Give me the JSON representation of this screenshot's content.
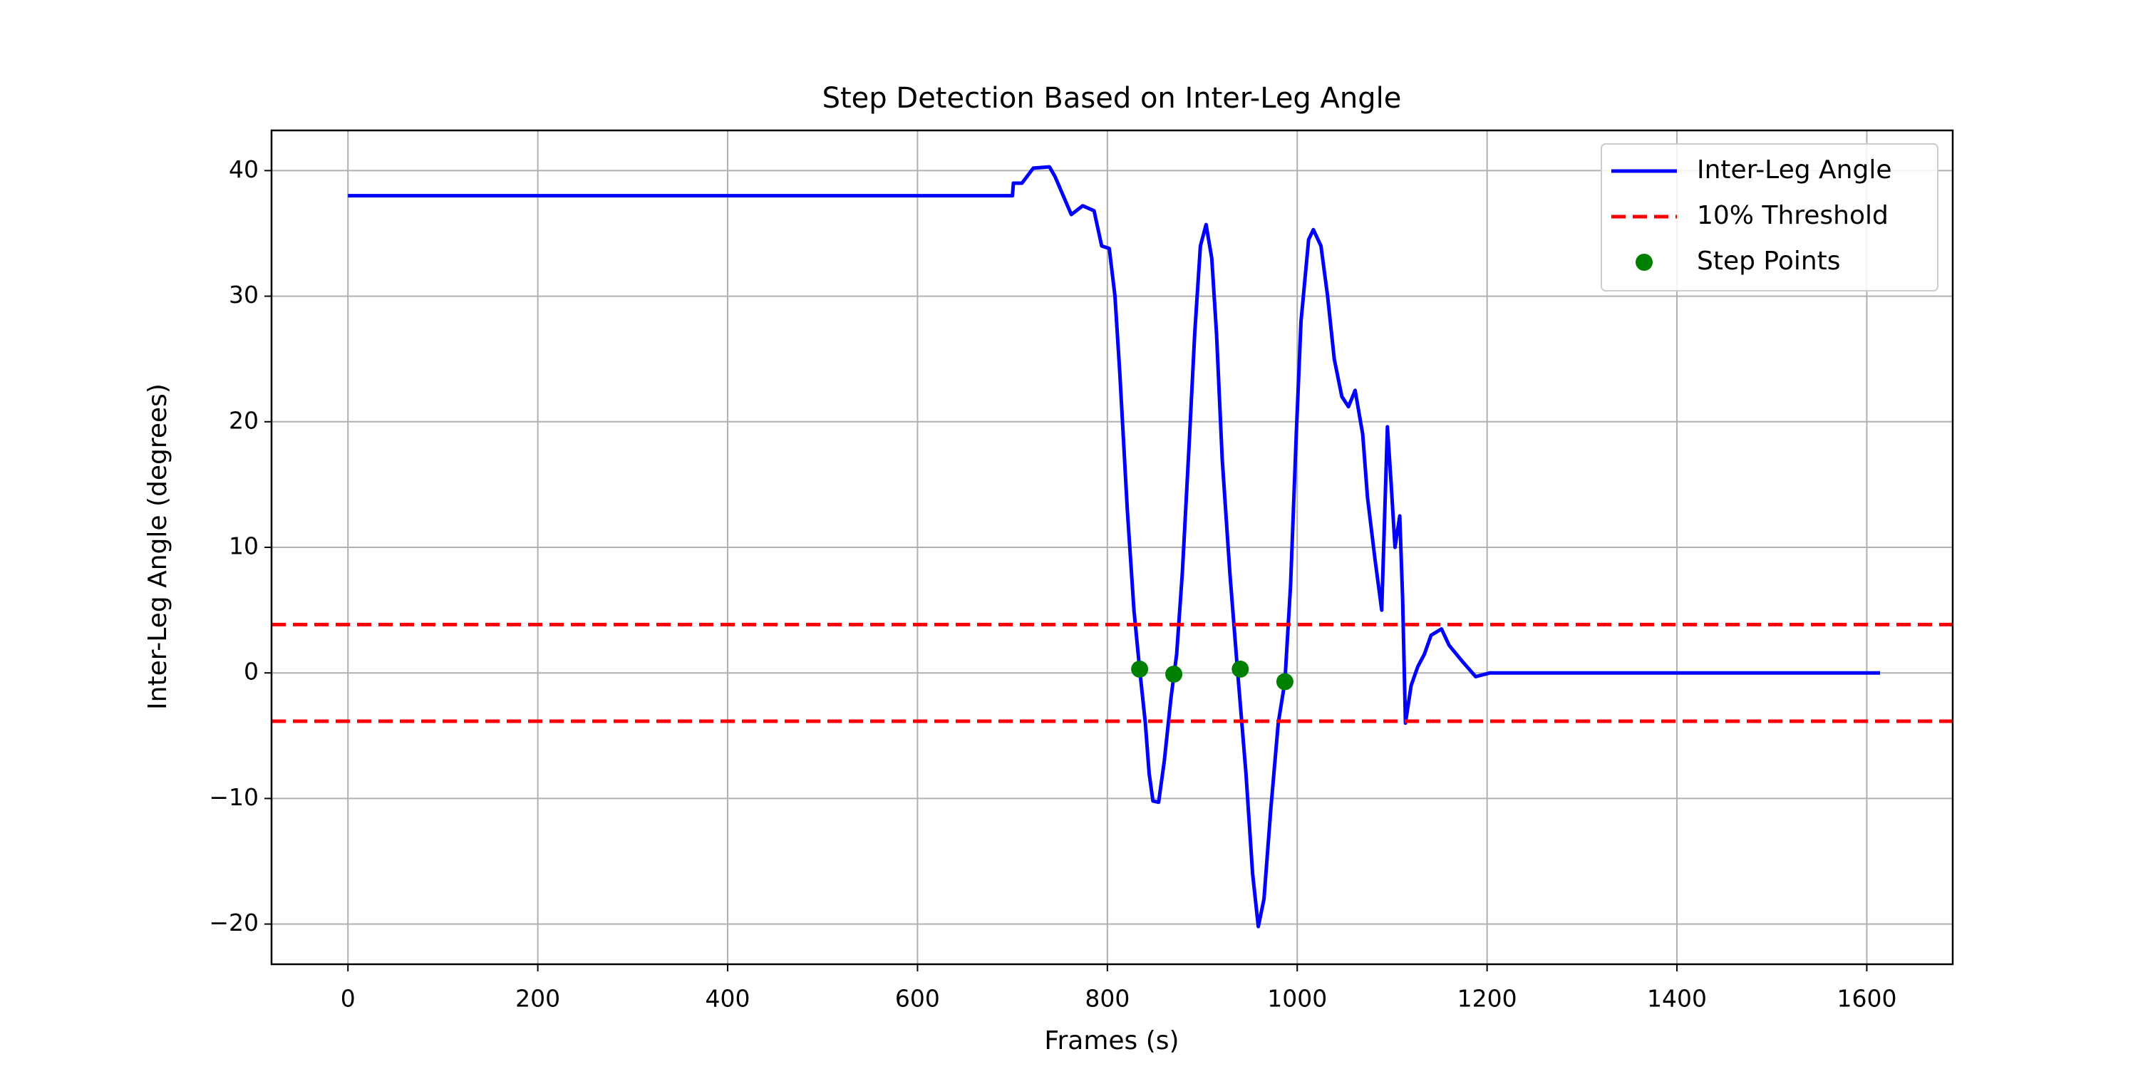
{
  "chart_data": {
    "type": "line",
    "title": "Step Detection Based on Inter-Leg Angle",
    "xlabel": "Frames (s)",
    "ylabel": "Inter-Leg Angle (degrees)",
    "xlim": [
      -80.5,
      1690.5
    ],
    "ylim": [
      -23.2,
      43.2
    ],
    "xticks": [
      0,
      200,
      400,
      600,
      800,
      1000,
      1200,
      1400,
      1600
    ],
    "yticks": [
      {
        "value": -20,
        "label": "−20"
      },
      {
        "value": -10,
        "label": "−10"
      },
      0,
      10,
      20,
      30,
      40
    ],
    "grid": true,
    "legend": "upper right",
    "series": [
      {
        "name": "Inter-Leg Angle",
        "color": "#0000ff",
        "x": [
          0,
          700,
          701,
          710,
          722,
          739,
          745,
          762,
          774,
          786,
          794,
          802,
          808,
          813,
          821,
          828,
          834,
          840,
          844,
          848,
          854,
          860,
          867,
          873,
          879,
          886,
          892,
          898,
          904,
          910,
          915,
          921,
          929,
          937,
          946,
          953,
          959,
          965,
          972,
          980,
          987,
          993,
          999,
          1004,
          1012,
          1017,
          1025,
          1032,
          1039,
          1047,
          1054,
          1061,
          1069,
          1074,
          1082,
          1089,
          1095,
          1099,
          1103,
          1108,
          1111,
          1114,
          1120,
          1127,
          1134,
          1141,
          1152,
          1160,
          1173,
          1188,
          1203,
          1614
        ],
        "values": [
          38,
          38,
          39,
          39,
          40.2,
          40.3,
          39.5,
          36.5,
          37.2,
          36.8,
          34,
          33.8,
          30,
          24,
          13,
          5,
          0.3,
          -4,
          -8,
          -10.2,
          -10.3,
          -7,
          -2,
          1.5,
          8,
          18,
          27,
          34,
          35.7,
          33,
          27,
          17,
          8,
          0.3,
          -8,
          -16,
          -20.2,
          -18,
          -11,
          -4,
          -0.7,
          7,
          19,
          28,
          34.5,
          35.3,
          34,
          30,
          25,
          22,
          21.2,
          22.5,
          19,
          14,
          9,
          5,
          19.6,
          15,
          10,
          12.5,
          6,
          -4,
          -1,
          0.5,
          1.5,
          3,
          3.5,
          2.2,
          1,
          -0.3,
          0,
          0
        ]
      }
    ],
    "threshold": {
      "name": "10% Threshold",
      "color": "#ff0000",
      "values": [
        3.85,
        -3.85
      ]
    },
    "points": {
      "name": "Step Points",
      "color": "#008000",
      "x": [
        834,
        870,
        940,
        987
      ],
      "values": [
        0.3,
        -0.1,
        0.3,
        -0.7
      ]
    }
  }
}
